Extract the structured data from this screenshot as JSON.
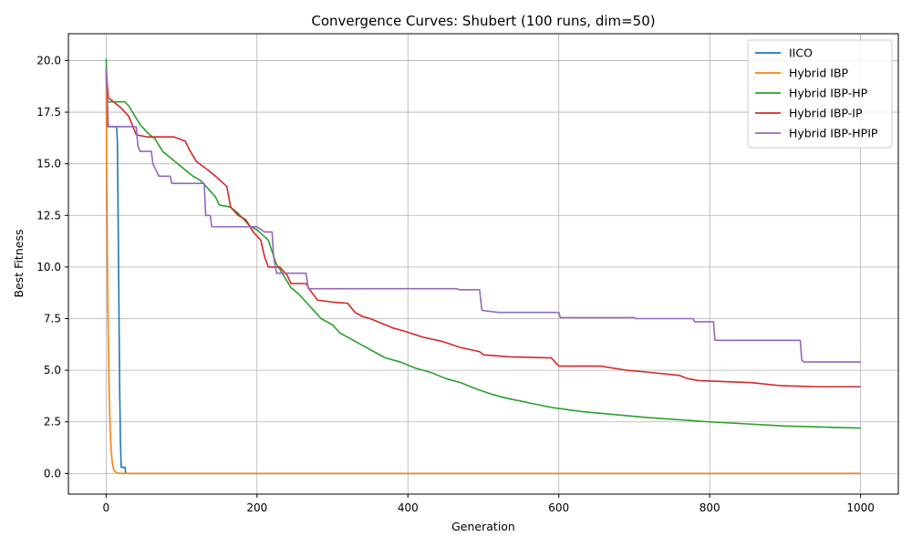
{
  "chart_data": {
    "type": "line",
    "title": "Convergence Curves: Shubert (100 runs, dim=50)",
    "xlabel": "Generation",
    "ylabel": "Best Fitness",
    "xlim": [
      -50,
      1050
    ],
    "ylim": [
      -1.0,
      21.3
    ],
    "xticks": [
      0,
      200,
      400,
      600,
      800,
      1000
    ],
    "yticks": [
      0.0,
      2.5,
      5.0,
      7.5,
      10.0,
      12.5,
      15.0,
      17.5,
      20.0
    ],
    "xtick_labels": [
      "0",
      "200",
      "400",
      "600",
      "800",
      "1000"
    ],
    "ytick_labels": [
      "0.0",
      "2.5",
      "5.0",
      "7.5",
      "10.0",
      "12.5",
      "15.0",
      "17.5",
      "20.0"
    ],
    "grid": true,
    "legend_position": "top-right",
    "series": [
      {
        "name": "IICO",
        "color": "#1f77b4",
        "points": [
          [
            0,
            19.6
          ],
          [
            1,
            18.5
          ],
          [
            2,
            16.8
          ],
          [
            14,
            16.8
          ],
          [
            15,
            16.0
          ],
          [
            16,
            12.0
          ],
          [
            17,
            8.0
          ],
          [
            18,
            4.0
          ],
          [
            19,
            1.5
          ],
          [
            20,
            0.3
          ],
          [
            25,
            0.3
          ],
          [
            26,
            0.0
          ],
          [
            1000,
            0.0
          ]
        ]
      },
      {
        "name": "Hybrid IBP",
        "color": "#ff7f0e",
        "points": [
          [
            0,
            19.5
          ],
          [
            1,
            13.5
          ],
          [
            2,
            9.0
          ],
          [
            3,
            6.0
          ],
          [
            4,
            4.0
          ],
          [
            5,
            2.6
          ],
          [
            6,
            1.6
          ],
          [
            7,
            1.0
          ],
          [
            8,
            0.6
          ],
          [
            9,
            0.35
          ],
          [
            10,
            0.2
          ],
          [
            12,
            0.08
          ],
          [
            15,
            0.02
          ],
          [
            20,
            0.0
          ],
          [
            1000,
            0.0
          ]
        ]
      },
      {
        "name": "Hybrid IBP-HP",
        "color": "#2ca02c",
        "points": [
          [
            0,
            20.1
          ],
          [
            2,
            18.0
          ],
          [
            25,
            18.0
          ],
          [
            30,
            17.8
          ],
          [
            35,
            17.5
          ],
          [
            40,
            17.2
          ],
          [
            45,
            16.9
          ],
          [
            55,
            16.5
          ],
          [
            65,
            16.2
          ],
          [
            70,
            15.9
          ],
          [
            75,
            15.6
          ],
          [
            85,
            15.3
          ],
          [
            95,
            15.0
          ],
          [
            105,
            14.7
          ],
          [
            115,
            14.4
          ],
          [
            125,
            14.2
          ],
          [
            135,
            13.8
          ],
          [
            145,
            13.4
          ],
          [
            150,
            13.0
          ],
          [
            165,
            12.9
          ],
          [
            175,
            12.6
          ],
          [
            185,
            12.2
          ],
          [
            190,
            12.0
          ],
          [
            200,
            11.8
          ],
          [
            215,
            11.3
          ],
          [
            225,
            10.2
          ],
          [
            235,
            9.6
          ],
          [
            245,
            9.0
          ],
          [
            255,
            8.7
          ],
          [
            265,
            8.3
          ],
          [
            275,
            7.9
          ],
          [
            285,
            7.5
          ],
          [
            300,
            7.2
          ],
          [
            310,
            6.8
          ],
          [
            325,
            6.5
          ],
          [
            340,
            6.2
          ],
          [
            355,
            5.9
          ],
          [
            370,
            5.6
          ],
          [
            390,
            5.4
          ],
          [
            410,
            5.1
          ],
          [
            430,
            4.9
          ],
          [
            450,
            4.6
          ],
          [
            470,
            4.4
          ],
          [
            490,
            4.1
          ],
          [
            510,
            3.85
          ],
          [
            530,
            3.65
          ],
          [
            550,
            3.5
          ],
          [
            570,
            3.35
          ],
          [
            590,
            3.2
          ],
          [
            610,
            3.1
          ],
          [
            630,
            3.0
          ],
          [
            660,
            2.9
          ],
          [
            690,
            2.8
          ],
          [
            720,
            2.7
          ],
          [
            760,
            2.6
          ],
          [
            800,
            2.5
          ],
          [
            850,
            2.4
          ],
          [
            900,
            2.3
          ],
          [
            950,
            2.25
          ],
          [
            1000,
            2.2
          ]
        ]
      },
      {
        "name": "Hybrid IBP-IP",
        "color": "#d62728",
        "points": [
          [
            0,
            19.5
          ],
          [
            3,
            18.2
          ],
          [
            10,
            18.0
          ],
          [
            20,
            17.7
          ],
          [
            30,
            17.3
          ],
          [
            40,
            16.4
          ],
          [
            55,
            16.3
          ],
          [
            90,
            16.3
          ],
          [
            105,
            16.1
          ],
          [
            110,
            15.7
          ],
          [
            120,
            15.1
          ],
          [
            135,
            14.7
          ],
          [
            145,
            14.4
          ],
          [
            160,
            13.9
          ],
          [
            165,
            12.9
          ],
          [
            170,
            12.7
          ],
          [
            175,
            12.5
          ],
          [
            185,
            12.3
          ],
          [
            190,
            12.0
          ],
          [
            195,
            11.7
          ],
          [
            205,
            11.3
          ],
          [
            210,
            10.5
          ],
          [
            215,
            10.0
          ],
          [
            230,
            10.0
          ],
          [
            240,
            9.6
          ],
          [
            245,
            9.2
          ],
          [
            265,
            9.2
          ],
          [
            270,
            8.9
          ],
          [
            280,
            8.4
          ],
          [
            300,
            8.3
          ],
          [
            320,
            8.25
          ],
          [
            330,
            7.8
          ],
          [
            340,
            7.6
          ],
          [
            350,
            7.5
          ],
          [
            370,
            7.2
          ],
          [
            380,
            7.05
          ],
          [
            395,
            6.9
          ],
          [
            420,
            6.6
          ],
          [
            445,
            6.4
          ],
          [
            470,
            6.1
          ],
          [
            495,
            5.9
          ],
          [
            500,
            5.75
          ],
          [
            535,
            5.65
          ],
          [
            590,
            5.6
          ],
          [
            600,
            5.2
          ],
          [
            655,
            5.2
          ],
          [
            690,
            5.0
          ],
          [
            720,
            4.9
          ],
          [
            760,
            4.75
          ],
          [
            770,
            4.6
          ],
          [
            785,
            4.5
          ],
          [
            855,
            4.4
          ],
          [
            895,
            4.25
          ],
          [
            945,
            4.2
          ],
          [
            1000,
            4.2
          ]
        ]
      },
      {
        "name": "Hybrid IBP-HPIP",
        "color": "#9467bd",
        "points": [
          [
            0,
            19.7
          ],
          [
            3,
            16.8
          ],
          [
            40,
            16.8
          ],
          [
            42,
            15.9
          ],
          [
            45,
            15.6
          ],
          [
            60,
            15.6
          ],
          [
            62,
            15.0
          ],
          [
            70,
            14.4
          ],
          [
            85,
            14.4
          ],
          [
            87,
            14.05
          ],
          [
            130,
            14.05
          ],
          [
            132,
            12.5
          ],
          [
            138,
            12.5
          ],
          [
            140,
            11.95
          ],
          [
            200,
            11.95
          ],
          [
            210,
            11.7
          ],
          [
            220,
            11.7
          ],
          [
            222,
            10.5
          ],
          [
            226,
            9.7
          ],
          [
            265,
            9.7
          ],
          [
            268,
            8.95
          ],
          [
            465,
            8.95
          ],
          [
            468,
            8.9
          ],
          [
            495,
            8.9
          ],
          [
            498,
            7.9
          ],
          [
            520,
            7.8
          ],
          [
            600,
            7.8
          ],
          [
            602,
            7.55
          ],
          [
            700,
            7.55
          ],
          [
            702,
            7.5
          ],
          [
            778,
            7.5
          ],
          [
            780,
            7.35
          ],
          [
            805,
            7.35
          ],
          [
            807,
            6.45
          ],
          [
            920,
            6.45
          ],
          [
            922,
            5.5
          ],
          [
            925,
            5.4
          ],
          [
            1000,
            5.4
          ]
        ]
      }
    ]
  }
}
